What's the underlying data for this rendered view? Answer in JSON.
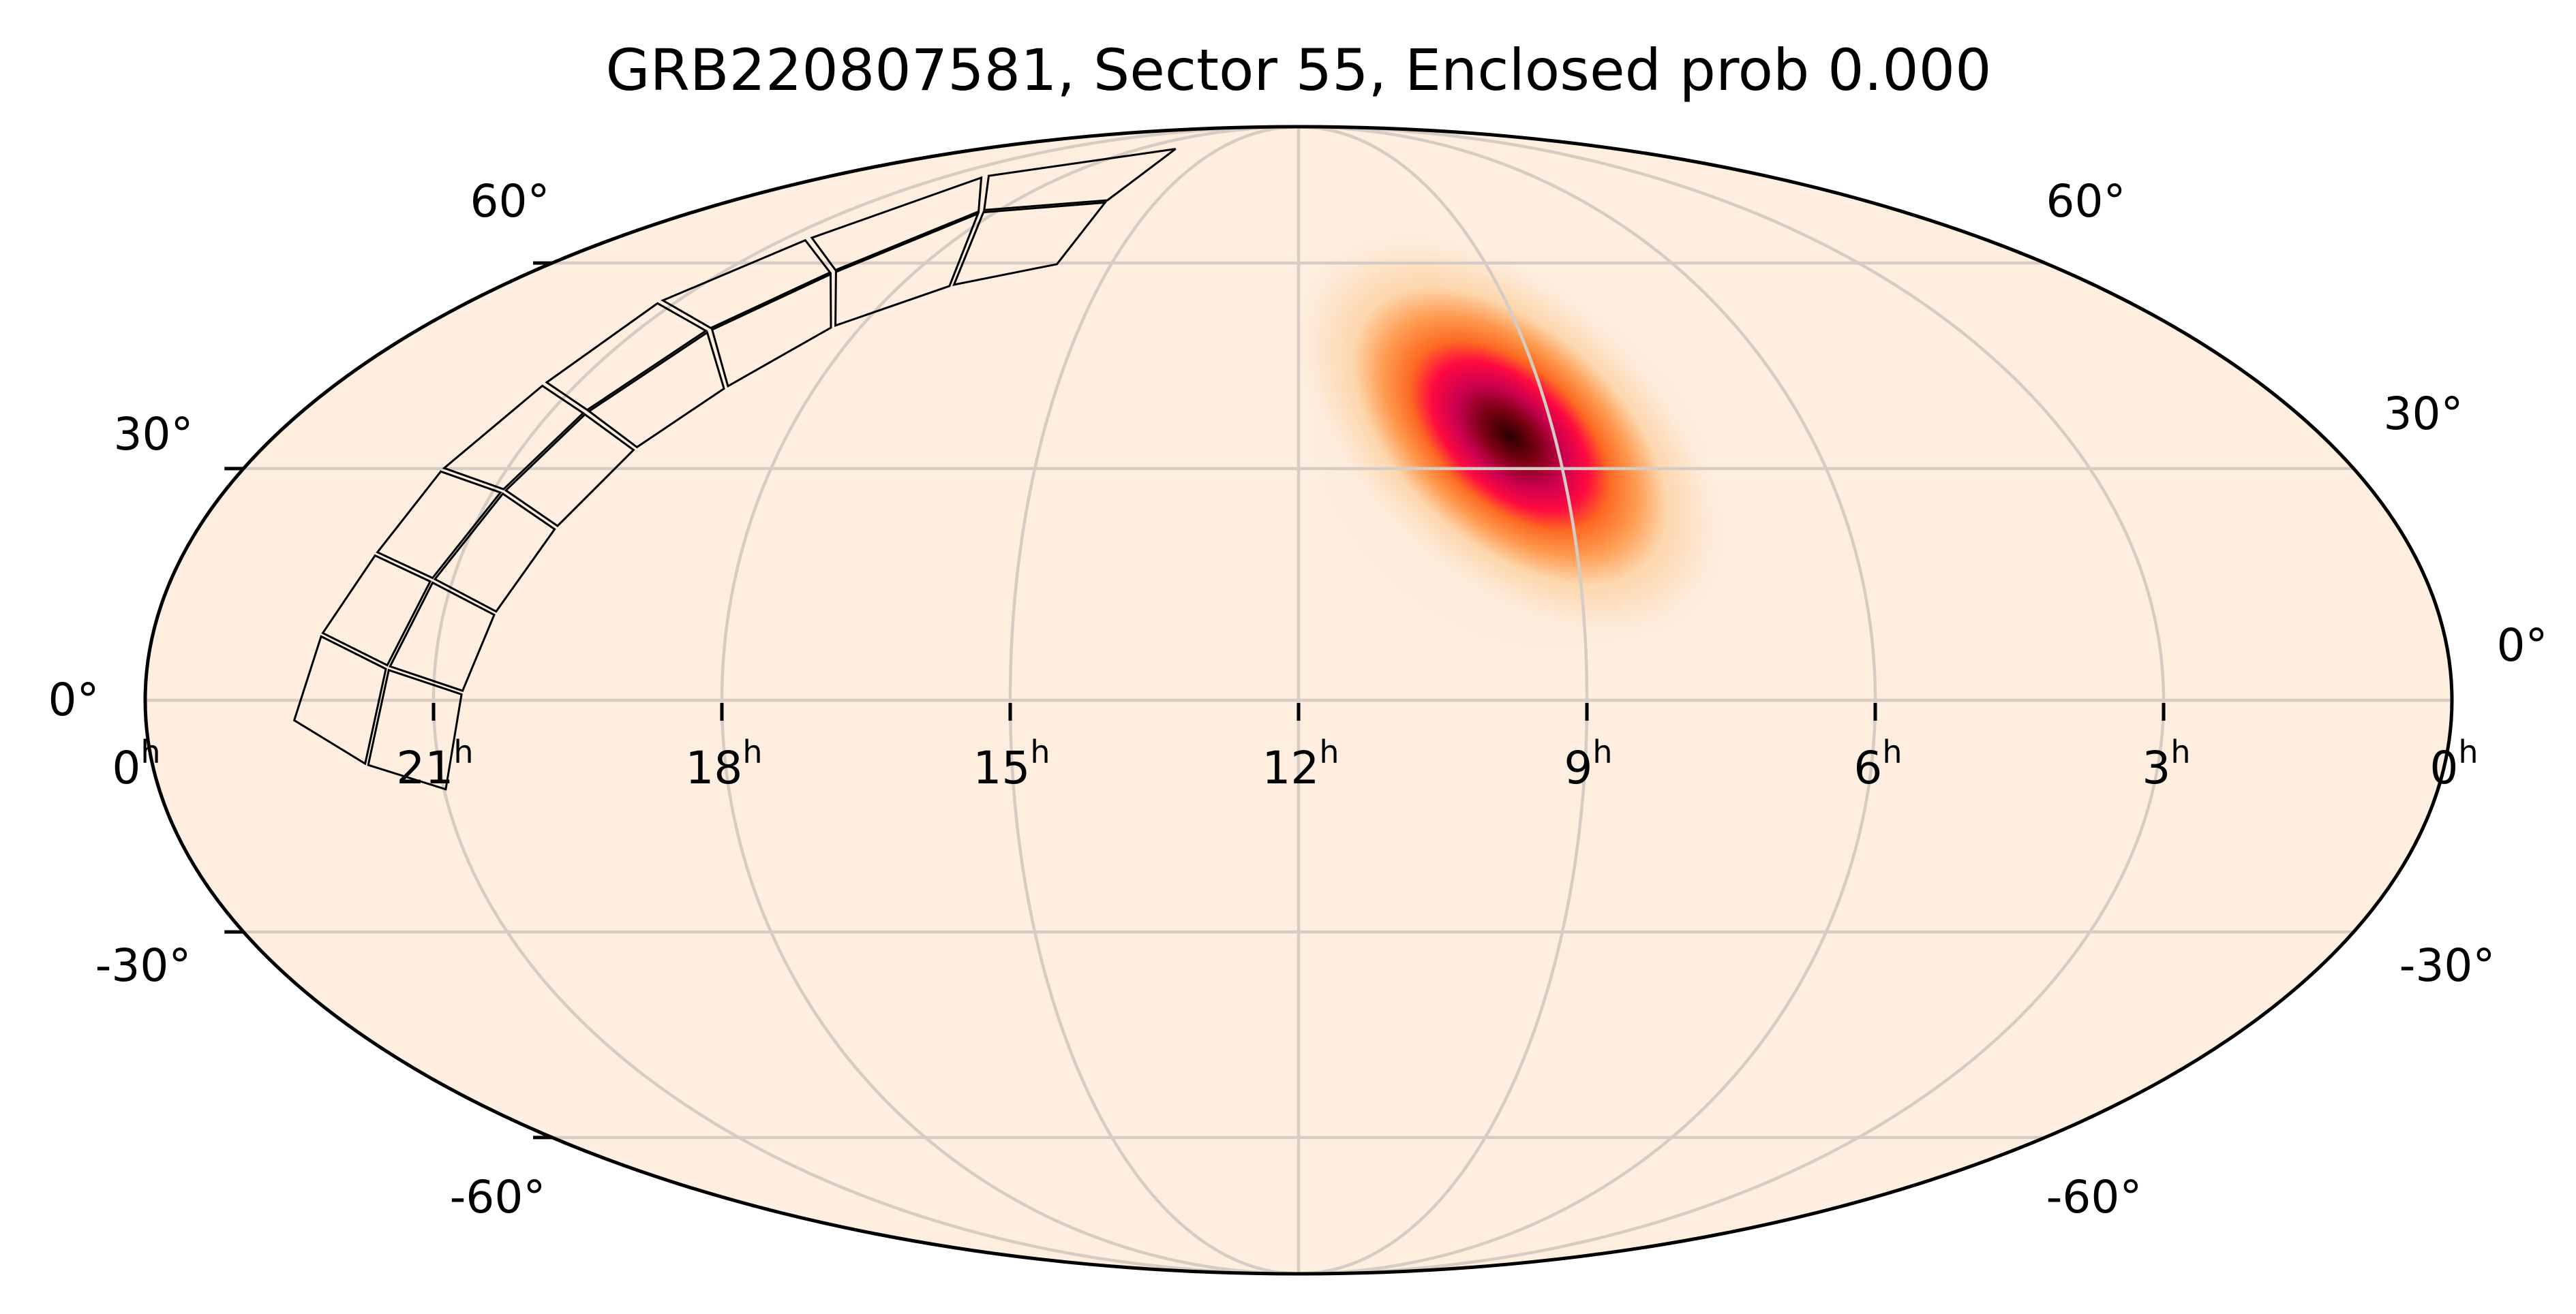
{
  "chart_data": {
    "type": "heatmap",
    "projection": "mollweide",
    "title": "GRB220807581, Sector 55, Enclosed prob 0.000",
    "xlabel": "",
    "ylabel": "",
    "grid": true,
    "x_axis": {
      "quantity": "Right Ascension",
      "direction": "increasing to the left",
      "tick_labels": [
        "0h",
        "21h",
        "18h",
        "15h",
        "12h",
        "9h",
        "6h",
        "3h",
        "0h"
      ],
      "tick_values_hours": [
        24,
        21,
        18,
        15,
        12,
        9,
        6,
        3,
        0
      ]
    },
    "y_axis": {
      "quantity": "Declination",
      "tick_labels": [
        "60°",
        "30°",
        "0°",
        "-30°",
        "-60°"
      ],
      "tick_values_deg": [
        60,
        30,
        0,
        -30,
        -60
      ],
      "ylim": [
        -90,
        90
      ]
    },
    "colormap": {
      "name": "heat (white → orange → red → magenta → black)",
      "background": "#fdeee0",
      "stops": [
        "#fdeee0",
        "#fdd6ac",
        "#fe9a50",
        "#fd6a22",
        "#fe0a40",
        "#cc0050",
        "#750010",
        "#2a0000"
      ]
    },
    "localization": {
      "peak_ra_hours": 9.9,
      "peak_dec_deg": 33,
      "orientation": "elongated from upper-left to lower-right",
      "extent_ra_hours": [
        8.4,
        11.6
      ],
      "extent_dec_deg": [
        15,
        52
      ]
    },
    "sector_footprint": {
      "label": "Sector 55",
      "cameras": 4,
      "ccds_per_camera": 4,
      "ra_span_hours": [
        15.5,
        23.2
      ],
      "dec_span_deg": [
        -3,
        70
      ]
    },
    "enclosed_probability": 0.0
  },
  "figure": {
    "title": "GRB220807581, Sector 55, Enclosed prob 0.000",
    "ra_labels": [
      {
        "main": "0",
        "sup": "h"
      },
      {
        "main": "21",
        "sup": "h"
      },
      {
        "main": "18",
        "sup": "h"
      },
      {
        "main": "15",
        "sup": "h"
      },
      {
        "main": "12",
        "sup": "h"
      },
      {
        "main": "9",
        "sup": "h"
      },
      {
        "main": "6",
        "sup": "h"
      },
      {
        "main": "3",
        "sup": "h"
      },
      {
        "main": "0",
        "sup": "h"
      }
    ],
    "dec_labels_left": [
      "60°",
      "30°",
      "0°",
      "-30°",
      "-60°"
    ],
    "dec_labels_right": [
      "60°",
      "30°",
      "0°",
      "-30°",
      "-60°"
    ],
    "colors": {
      "background": "#fdeee0",
      "grid": "#d6ccc4",
      "frame": "#000000",
      "tile_edge": "#000000"
    }
  }
}
